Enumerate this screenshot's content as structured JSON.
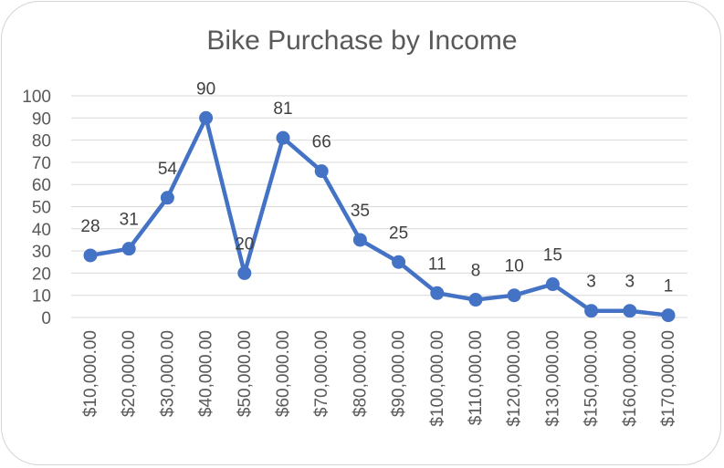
{
  "chart_data": {
    "type": "line",
    "title": "Bike Purchase by Income",
    "xlabel": "",
    "ylabel": "",
    "categories": [
      "$10,000.00",
      "$20,000.00",
      "$30,000.00",
      "$40,000.00",
      "$50,000.00",
      "$60,000.00",
      "$70,000.00",
      "$80,000.00",
      "$90,000.00",
      "$100,000.00",
      "$110,000.00",
      "$120,000.00",
      "$130,000.00",
      "$150,000.00",
      "$160,000.00",
      "$170,000.00"
    ],
    "values": [
      28,
      31,
      54,
      90,
      20,
      81,
      66,
      35,
      25,
      11,
      8,
      10,
      15,
      3,
      3,
      1
    ],
    "data_labels": [
      "28",
      "31",
      "54",
      "90",
      "20",
      "81",
      "66",
      "35",
      "25",
      "11",
      "8",
      "10",
      "15",
      "3",
      "3",
      "1"
    ],
    "ylim": [
      0,
      100
    ],
    "yticks": [
      0,
      10,
      20,
      30,
      40,
      50,
      60,
      70,
      80,
      90,
      100
    ],
    "grid": true,
    "legend": "none",
    "colors": {
      "line": "#4472c4",
      "grid": "#d9d9d9",
      "text": "#595959"
    }
  }
}
